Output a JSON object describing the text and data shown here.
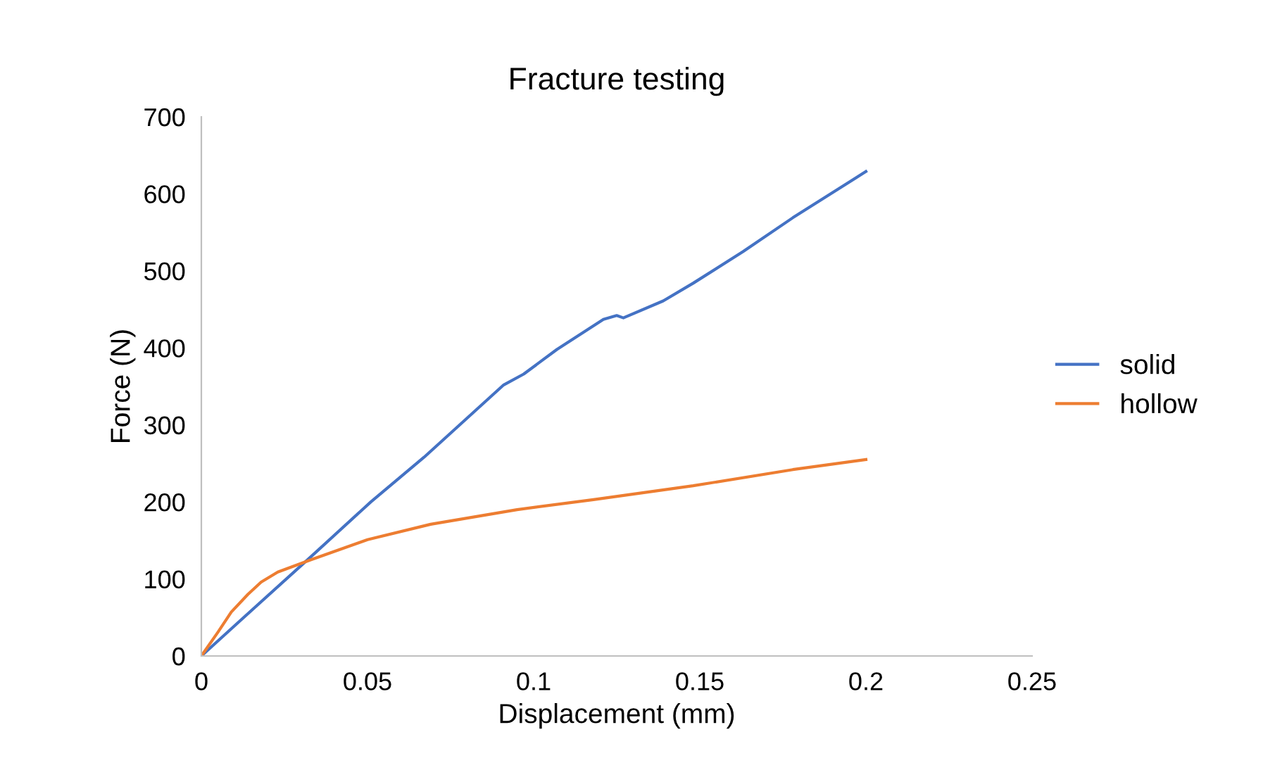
{
  "chart_data": {
    "type": "line",
    "title": "Fracture testing",
    "xlabel": "Displacement (mm)",
    "ylabel": "Force (N)",
    "xlim": [
      0,
      0.25
    ],
    "xticks": [
      0,
      0.05,
      0.1,
      0.15,
      0.2,
      0.25
    ],
    "ylim": [
      0,
      700
    ],
    "yticks": [
      0,
      100,
      200,
      300,
      400,
      500,
      600,
      700
    ],
    "grid": false,
    "legend": "right",
    "marker": "none",
    "line_style": "solid",
    "series": [
      {
        "name": "solid",
        "color": "#4472c4",
        "x": [
          0,
          0.012,
          0.033,
          0.051,
          0.067,
          0.091,
          0.097,
          0.107,
          0.121,
          0.125,
          0.127,
          0.139,
          0.148,
          0.163,
          0.178,
          0.2
        ],
        "values": [
          0,
          47,
          129,
          200,
          258,
          352,
          366,
          398,
          437,
          442,
          439,
          461,
          484,
          525,
          569,
          629
        ]
      },
      {
        "name": "hollow",
        "color": "#ed7d31",
        "x": [
          0,
          0.005,
          0.009,
          0.014,
          0.018,
          0.023,
          0.033,
          0.05,
          0.069,
          0.095,
          0.118,
          0.148,
          0.178,
          0.2
        ],
        "values": [
          0,
          31,
          57,
          80,
          96,
          109,
          125,
          151,
          171,
          190,
          203,
          221,
          242,
          255
        ]
      }
    ]
  }
}
